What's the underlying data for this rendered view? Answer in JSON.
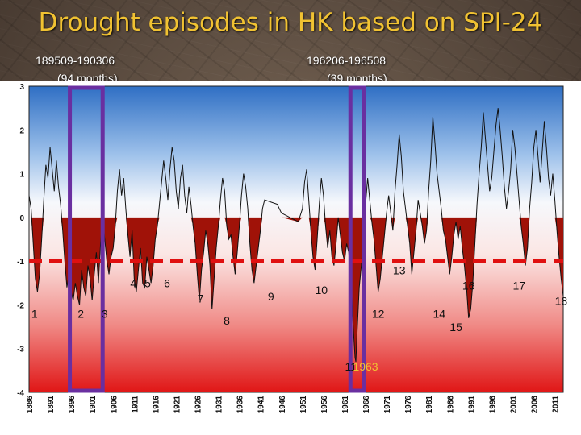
{
  "title": "Drought episodes in HK based on SPI-24",
  "episodes": [
    {
      "range": "189509-190306",
      "duration": "(94 months)"
    },
    {
      "range": "196206-196508",
      "duration": "(39 months)"
    }
  ],
  "colors": {
    "title": "#f1c232",
    "drought_fill": "#a01208",
    "threshold_line": "#e01010",
    "highlight_box": "#6a2fa0",
    "year_annotation": "#f1c232"
  },
  "chart_data": {
    "type": "line",
    "title": "Drought episodes in HK based on SPI-24",
    "xlabel": "",
    "ylabel": "",
    "ylim": [
      -4,
      3
    ],
    "xlim": [
      1886,
      2013
    ],
    "y_ticks": [
      "3",
      "2",
      "1",
      "0",
      "-1",
      "-2",
      "-3",
      "-4"
    ],
    "x_ticks": [
      "1886",
      "1891",
      "1896",
      "1901",
      "1906",
      "1911",
      "1916",
      "1921",
      "1926",
      "1931",
      "1936",
      "1941",
      "1946",
      "1951",
      "1956",
      "1961",
      "1966",
      "1971",
      "1976",
      "1981",
      "1986",
      "1991",
      "1996",
      "2001",
      "2006",
      "2011"
    ],
    "threshold": -1,
    "series": [
      {
        "values": [
          [
            1886.0,
            0.5
          ],
          [
            1886.5,
            0.2
          ],
          [
            1887.0,
            -0.6
          ],
          [
            1887.5,
            -1.4
          ],
          [
            1888.0,
            -1.7
          ],
          [
            1888.5,
            -1.3
          ],
          [
            1889.0,
            -0.5
          ],
          [
            1889.5,
            0.4
          ],
          [
            1890.0,
            1.2
          ],
          [
            1890.5,
            0.9
          ],
          [
            1891.0,
            1.6
          ],
          [
            1891.5,
            1.1
          ],
          [
            1892.0,
            0.6
          ],
          [
            1892.5,
            1.3
          ],
          [
            1893.0,
            0.7
          ],
          [
            1893.5,
            0.3
          ],
          [
            1894.0,
            -0.3
          ],
          [
            1894.5,
            -1.0
          ],
          [
            1895.0,
            -1.6
          ],
          [
            1895.5,
            -1.3
          ],
          [
            1896.0,
            -1.7
          ],
          [
            1896.5,
            -1.9
          ],
          [
            1897.0,
            -1.5
          ],
          [
            1897.5,
            -1.8
          ],
          [
            1898.0,
            -2.0
          ],
          [
            1898.5,
            -1.2
          ],
          [
            1899.0,
            -1.6
          ],
          [
            1899.5,
            -1.8
          ],
          [
            1900.0,
            -1.1
          ],
          [
            1900.5,
            -1.4
          ],
          [
            1901.0,
            -1.9
          ],
          [
            1901.5,
            -1.3
          ],
          [
            1902.0,
            -0.8
          ],
          [
            1902.5,
            -1.5
          ],
          [
            1903.0,
            -0.6
          ],
          [
            1903.5,
            0.0
          ],
          [
            1904.0,
            -0.5
          ],
          [
            1904.5,
            -1.0
          ],
          [
            1905.0,
            -1.3
          ],
          [
            1905.5,
            -0.9
          ],
          [
            1906.0,
            -0.7
          ],
          [
            1906.5,
            -0.2
          ],
          [
            1907.0,
            0.6
          ],
          [
            1907.5,
            1.1
          ],
          [
            1908.0,
            0.5
          ],
          [
            1908.5,
            0.9
          ],
          [
            1909.0,
            0.2
          ],
          [
            1909.5,
            -0.4
          ],
          [
            1910.0,
            -0.9
          ],
          [
            1910.5,
            -0.3
          ],
          [
            1911.0,
            -1.4
          ],
          [
            1911.5,
            -1.7
          ],
          [
            1912.0,
            -1.2
          ],
          [
            1912.5,
            -0.7
          ],
          [
            1913.0,
            -1.5
          ],
          [
            1913.5,
            -1.6
          ],
          [
            1914.0,
            -0.9
          ],
          [
            1914.5,
            -1.2
          ],
          [
            1915.0,
            -1.5
          ],
          [
            1915.5,
            -1.1
          ],
          [
            1916.0,
            -0.5
          ],
          [
            1916.5,
            -0.2
          ],
          [
            1917.0,
            0.3
          ],
          [
            1917.5,
            0.8
          ],
          [
            1918.0,
            1.3
          ],
          [
            1918.5,
            0.9
          ],
          [
            1919.0,
            0.4
          ],
          [
            1919.5,
            1.1
          ],
          [
            1920.0,
            1.6
          ],
          [
            1920.5,
            1.3
          ],
          [
            1921.0,
            0.6
          ],
          [
            1921.5,
            0.2
          ],
          [
            1922.0,
            0.9
          ],
          [
            1922.5,
            1.2
          ],
          [
            1923.0,
            0.5
          ],
          [
            1923.5,
            0.1
          ],
          [
            1924.0,
            0.7
          ],
          [
            1924.5,
            0.3
          ],
          [
            1925.0,
            -0.2
          ],
          [
            1925.5,
            -0.6
          ],
          [
            1926.0,
            -1.3
          ],
          [
            1926.5,
            -1.9
          ],
          [
            1927.0,
            -1.2
          ],
          [
            1927.5,
            -0.8
          ],
          [
            1928.0,
            -0.3
          ],
          [
            1928.5,
            -0.6
          ],
          [
            1929.0,
            -1.1
          ],
          [
            1929.5,
            -2.1
          ],
          [
            1930.0,
            -1.4
          ],
          [
            1930.5,
            -0.7
          ],
          [
            1931.0,
            -0.2
          ],
          [
            1931.5,
            0.4
          ],
          [
            1932.0,
            0.9
          ],
          [
            1932.5,
            0.6
          ],
          [
            1933.0,
            -0.2
          ],
          [
            1933.5,
            -0.5
          ],
          [
            1934.0,
            -0.4
          ],
          [
            1934.5,
            -0.9
          ],
          [
            1935.0,
            -1.3
          ],
          [
            1935.5,
            -0.8
          ],
          [
            1936.0,
            -0.2
          ],
          [
            1936.5,
            0.5
          ],
          [
            1937.0,
            1.0
          ],
          [
            1937.5,
            0.7
          ],
          [
            1938.0,
            0.2
          ],
          [
            1938.5,
            -0.6
          ],
          [
            1939.0,
            -1.2
          ],
          [
            1939.5,
            -1.5
          ],
          [
            1940.0,
            -1.1
          ],
          [
            1940.5,
            -0.7
          ],
          [
            1941.0,
            -0.3
          ],
          [
            1941.5,
            0.2
          ],
          [
            1942.0,
            0.4
          ],
          [
            1945.0,
            0.3
          ],
          [
            1946.0,
            0.1
          ],
          [
            1950.0,
            -0.1
          ],
          [
            1951.0,
            0.2
          ],
          [
            1951.5,
            0.8
          ],
          [
            1952.0,
            1.1
          ],
          [
            1952.5,
            0.4
          ],
          [
            1953.0,
            -0.3
          ],
          [
            1953.5,
            -0.9
          ],
          [
            1954.0,
            -1.2
          ],
          [
            1954.5,
            -0.5
          ],
          [
            1955.0,
            0.3
          ],
          [
            1955.5,
            0.9
          ],
          [
            1956.0,
            0.5
          ],
          [
            1956.5,
            -0.2
          ],
          [
            1957.0,
            -0.7
          ],
          [
            1957.5,
            -0.3
          ],
          [
            1958.0,
            -0.9
          ],
          [
            1958.5,
            -1.1
          ],
          [
            1959.0,
            -0.6
          ],
          [
            1959.5,
            0.0
          ],
          [
            1960.0,
            -0.4
          ],
          [
            1960.5,
            -0.8
          ],
          [
            1961.0,
            -1.0
          ],
          [
            1961.5,
            -0.6
          ],
          [
            1962.0,
            -0.8
          ],
          [
            1962.5,
            -1.3
          ],
          [
            1963.0,
            -2.4
          ],
          [
            1963.5,
            -3.2
          ],
          [
            1963.7,
            -3.3
          ],
          [
            1964.0,
            -2.6
          ],
          [
            1964.5,
            -1.6
          ],
          [
            1965.0,
            -1.1
          ],
          [
            1965.5,
            -0.4
          ],
          [
            1966.0,
            0.3
          ],
          [
            1966.5,
            0.9
          ],
          [
            1967.0,
            0.4
          ],
          [
            1967.5,
            -0.1
          ],
          [
            1968.0,
            -0.5
          ],
          [
            1968.5,
            -1.1
          ],
          [
            1969.0,
            -1.7
          ],
          [
            1969.5,
            -1.4
          ],
          [
            1970.0,
            -0.9
          ],
          [
            1970.5,
            -0.4
          ],
          [
            1971.0,
            0.1
          ],
          [
            1971.5,
            0.5
          ],
          [
            1972.0,
            0.1
          ],
          [
            1972.5,
            -0.3
          ],
          [
            1973.0,
            0.6
          ],
          [
            1973.5,
            1.2
          ],
          [
            1974.0,
            1.9
          ],
          [
            1974.5,
            1.4
          ],
          [
            1975.0,
            0.6
          ],
          [
            1975.5,
            0.2
          ],
          [
            1976.0,
            -0.2
          ],
          [
            1976.5,
            -0.6
          ],
          [
            1977.0,
            -1.3
          ],
          [
            1977.5,
            -0.8
          ],
          [
            1978.0,
            -0.3
          ],
          [
            1978.5,
            0.4
          ],
          [
            1979.0,
            0.1
          ],
          [
            1979.5,
            -0.2
          ],
          [
            1980.0,
            -0.6
          ],
          [
            1980.5,
            -0.3
          ],
          [
            1981.0,
            0.6
          ],
          [
            1981.5,
            1.3
          ],
          [
            1982.0,
            2.3
          ],
          [
            1982.5,
            1.7
          ],
          [
            1983.0,
            1.0
          ],
          [
            1983.5,
            0.6
          ],
          [
            1984.0,
            0.2
          ],
          [
            1984.5,
            -0.3
          ],
          [
            1985.0,
            -0.5
          ],
          [
            1985.5,
            -0.9
          ],
          [
            1986.0,
            -1.3
          ],
          [
            1986.5,
            -0.9
          ],
          [
            1987.0,
            -0.4
          ],
          [
            1987.5,
            -0.1
          ],
          [
            1988.0,
            -0.5
          ],
          [
            1988.5,
            -0.2
          ],
          [
            1989.0,
            -0.7
          ],
          [
            1989.5,
            -1.1
          ],
          [
            1990.0,
            -1.6
          ],
          [
            1990.5,
            -2.3
          ],
          [
            1991.0,
            -2.1
          ],
          [
            1991.5,
            -1.5
          ],
          [
            1992.0,
            -0.6
          ],
          [
            1992.5,
            0.3
          ],
          [
            1993.0,
            1.0
          ],
          [
            1993.5,
            1.6
          ],
          [
            1994.0,
            2.4
          ],
          [
            1994.5,
            1.8
          ],
          [
            1995.0,
            1.2
          ],
          [
            1995.5,
            0.6
          ],
          [
            1996.0,
            0.9
          ],
          [
            1996.5,
            1.5
          ],
          [
            1997.0,
            2.1
          ],
          [
            1997.5,
            2.5
          ],
          [
            1998.0,
            2.0
          ],
          [
            1998.5,
            1.4
          ],
          [
            1999.0,
            0.7
          ],
          [
            1999.5,
            0.2
          ],
          [
            2000.0,
            0.6
          ],
          [
            2000.5,
            1.1
          ],
          [
            2001.0,
            2.0
          ],
          [
            2001.5,
            1.6
          ],
          [
            2002.0,
            1.0
          ],
          [
            2002.5,
            0.4
          ],
          [
            2003.0,
            -0.2
          ],
          [
            2003.5,
            -0.6
          ],
          [
            2004.0,
            -1.1
          ],
          [
            2004.5,
            -0.7
          ],
          [
            2005.0,
            0.2
          ],
          [
            2005.5,
            0.8
          ],
          [
            2006.0,
            1.6
          ],
          [
            2006.5,
            2.0
          ],
          [
            2007.0,
            1.4
          ],
          [
            2007.5,
            0.8
          ],
          [
            2008.0,
            1.5
          ],
          [
            2008.5,
            2.2
          ],
          [
            2009.0,
            1.6
          ],
          [
            2009.5,
            0.9
          ],
          [
            2010.0,
            0.5
          ],
          [
            2010.5,
            1.0
          ],
          [
            2011.0,
            0.4
          ],
          [
            2011.5,
            -0.3
          ],
          [
            2012.0,
            -0.9
          ],
          [
            2012.5,
            -1.4
          ],
          [
            2013.0,
            -1.8
          ]
        ]
      }
    ],
    "annotations": [
      {
        "label": "1",
        "year": 1887.3,
        "spi": -2.3
      },
      {
        "label": "2",
        "year": 1898.3,
        "spi": -2.3
      },
      {
        "label": "3",
        "year": 1904.0,
        "spi": -2.3
      },
      {
        "label": "4",
        "year": 1910.8,
        "spi": -1.6
      },
      {
        "label": "5",
        "year": 1914.2,
        "spi": -1.6
      },
      {
        "label": "6",
        "year": 1918.8,
        "spi": -1.6
      },
      {
        "label": "7",
        "year": 1926.8,
        "spi": -1.95
      },
      {
        "label": "8",
        "year": 1933.0,
        "spi": -2.45
      },
      {
        "label": "9",
        "year": 1943.5,
        "spi": -1.9
      },
      {
        "label": "10",
        "year": 1955.5,
        "spi": -1.75
      },
      {
        "label": "11",
        "year": 1962.5,
        "spi": -3.5
      },
      {
        "label": "12",
        "year": 1969.0,
        "spi": -2.3
      },
      {
        "label": "13",
        "year": 1974.0,
        "spi": -1.3
      },
      {
        "label": "14",
        "year": 1983.5,
        "spi": -2.3
      },
      {
        "label": "15",
        "year": 1987.5,
        "spi": -2.6
      },
      {
        "label": "16",
        "year": 1990.5,
        "spi": -1.65
      },
      {
        "label": "17",
        "year": 2002.5,
        "spi": -1.65
      },
      {
        "label": "18",
        "year": 2012.5,
        "spi": -2.0
      }
    ],
    "year_annotation": {
      "label": "1963",
      "year": 1966.0,
      "spi": -3.5
    },
    "highlight_periods": [
      {
        "label": "189509-190306",
        "start": 1895.7,
        "end": 1903.5
      },
      {
        "label": "196206-196508",
        "start": 1962.4,
        "end": 1965.6
      }
    ],
    "grid": false
  }
}
